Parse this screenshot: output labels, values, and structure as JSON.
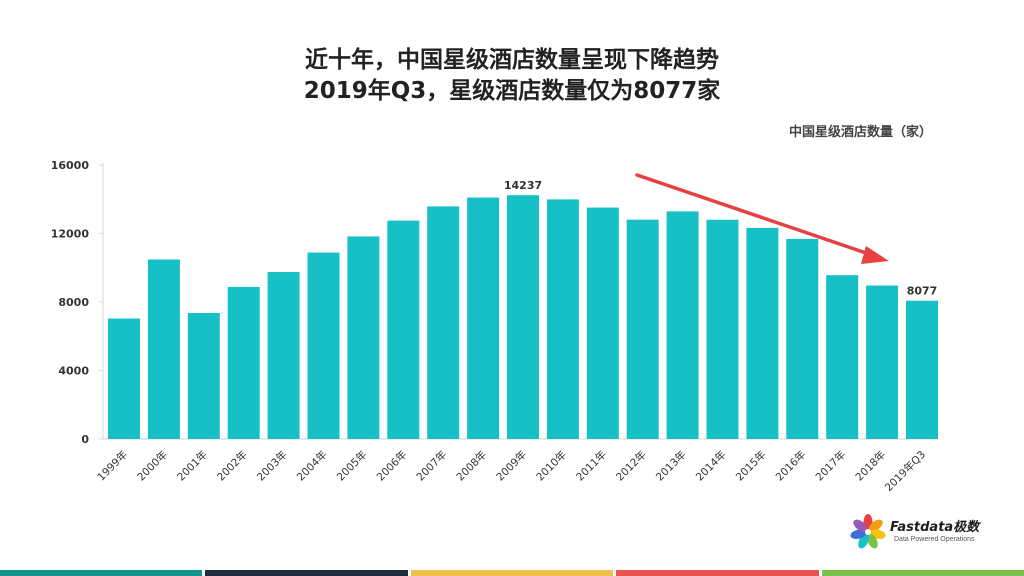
{
  "title": {
    "line1": "近十年，中国星级酒店数量呈现下降趋势",
    "line2": "2019年Q3，星级酒店数量仅为8077家"
  },
  "chart_data": {
    "type": "bar",
    "series_label": "中国星级酒店数量（家）",
    "categories": [
      "1999年",
      "2000年",
      "2001年",
      "2002年",
      "2003年",
      "2004年",
      "2005年",
      "2006年",
      "2007年",
      "2008年",
      "2009年",
      "2010年",
      "2011年",
      "2012年",
      "2013年",
      "2014年",
      "2015年",
      "2016年",
      "2017年",
      "2018年",
      "2019年Q3"
    ],
    "values": [
      7035,
      10481,
      7358,
      8880,
      9751,
      10888,
      11828,
      12751,
      13583,
      14099,
      14237,
      13991,
      13513,
      12807,
      13293,
      12803,
      12327,
      11685,
      9566,
      8962,
      8077
    ],
    "data_labels": {
      "10": "14237",
      "20": "8077"
    },
    "yticks": [
      "0",
      "4000",
      "8000",
      "12000",
      "16000"
    ],
    "ylim": [
      0,
      16000
    ],
    "bar_color": "#17c0c4",
    "trend_arrow_color": "#e84040",
    "grid": false,
    "legend": "none"
  },
  "logo": {
    "text": "Fastdata极数",
    "subtitle": "Data Powered Operations"
  },
  "footer_stripe_colors": [
    "#12958f",
    "#1f2d3d",
    "#f0c24b",
    "#e8524f",
    "#7cc24a"
  ]
}
